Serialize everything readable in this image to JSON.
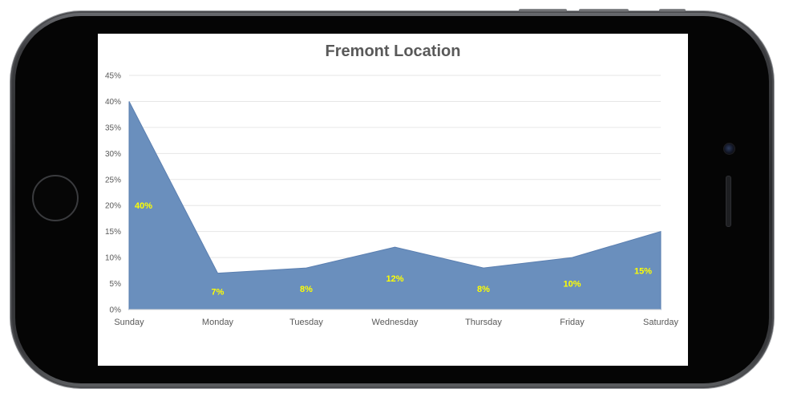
{
  "chart_data": {
    "type": "area",
    "title": "Fremont Location",
    "categories": [
      "Sunday",
      "Monday",
      "Tuesday",
      "Wednesday",
      "Thursday",
      "Friday",
      "Saturday"
    ],
    "series": [
      {
        "values": [
          40,
          7,
          8,
          12,
          8,
          10,
          15
        ]
      }
    ],
    "data_labels": [
      "40%",
      "7%",
      "8%",
      "12%",
      "8%",
      "10%",
      "15%"
    ],
    "y_ticks": [
      "0%",
      "5%",
      "10%",
      "15%",
      "20%",
      "25%",
      "30%",
      "35%",
      "40%",
      "45%"
    ],
    "ylim": [
      0,
      45
    ],
    "grid": true,
    "legend": "none",
    "colors": {
      "area": "#6a8fbd",
      "area_edge": "#5b7fb0",
      "grid": "#e6e6e6",
      "data_label": "#ffff00",
      "text": "#595959"
    }
  }
}
